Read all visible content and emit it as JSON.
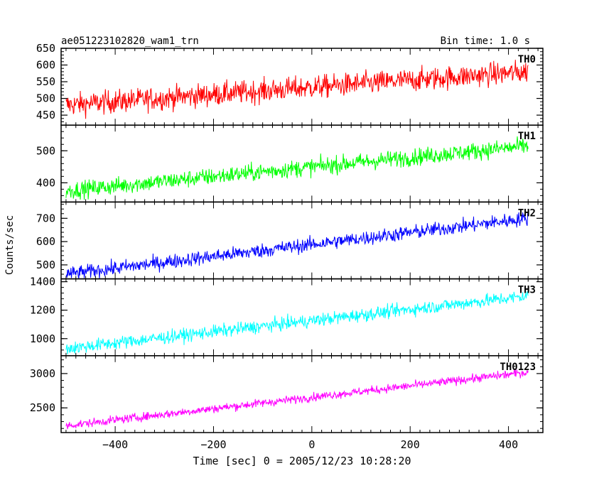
{
  "header": {
    "title": "ae051223102820_wam1_trn",
    "bin_time": "Bin time: 1.0 s"
  },
  "axes": {
    "xlabel": "Time [sec] 0 = 2005/12/23 10:28:20",
    "ylabel": "Counts/sec",
    "x_ticks": [
      -400,
      -200,
      0,
      200,
      400
    ],
    "xlim": [
      -510,
      470
    ]
  },
  "chart_data": [
    {
      "type": "line",
      "series_label": "TH0",
      "color": "#ff0000",
      "ylim": [
        420,
        650
      ],
      "y_ticks": [
        450,
        500,
        550,
        600,
        650
      ],
      "x_range": [
        -500,
        440
      ],
      "trend": {
        "start": 480,
        "end": 580
      },
      "noise": 45
    },
    {
      "type": "line",
      "series_label": "TH1",
      "color": "#00ff00",
      "ylim": [
        340,
        580
      ],
      "y_ticks": [
        400,
        500
      ],
      "x_range": [
        -500,
        440
      ],
      "trend": {
        "start": 375,
        "end": 515
      },
      "noise": 35
    },
    {
      "type": "line",
      "series_label": "TH2",
      "color": "#0000ff",
      "ylim": [
        440,
        770
      ],
      "y_ticks": [
        500,
        600,
        700
      ],
      "x_range": [
        -500,
        440
      ],
      "trend": {
        "start": 460,
        "end": 700
      },
      "noise": 40
    },
    {
      "type": "line",
      "series_label": "TH3",
      "color": "#00ffff",
      "ylim": [
        880,
        1420
      ],
      "y_ticks": [
        1000,
        1200,
        1400
      ],
      "x_range": [
        -500,
        440
      ],
      "trend": {
        "start": 930,
        "end": 1300
      },
      "noise": 60
    },
    {
      "type": "line",
      "series_label": "TH0123",
      "color": "#ff00ff",
      "ylim": [
        2140,
        3260
      ],
      "y_ticks": [
        2500,
        3000
      ],
      "x_range": [
        -500,
        440
      ],
      "trend": {
        "start": 2240,
        "end": 3020
      },
      "noise": 80
    }
  ]
}
